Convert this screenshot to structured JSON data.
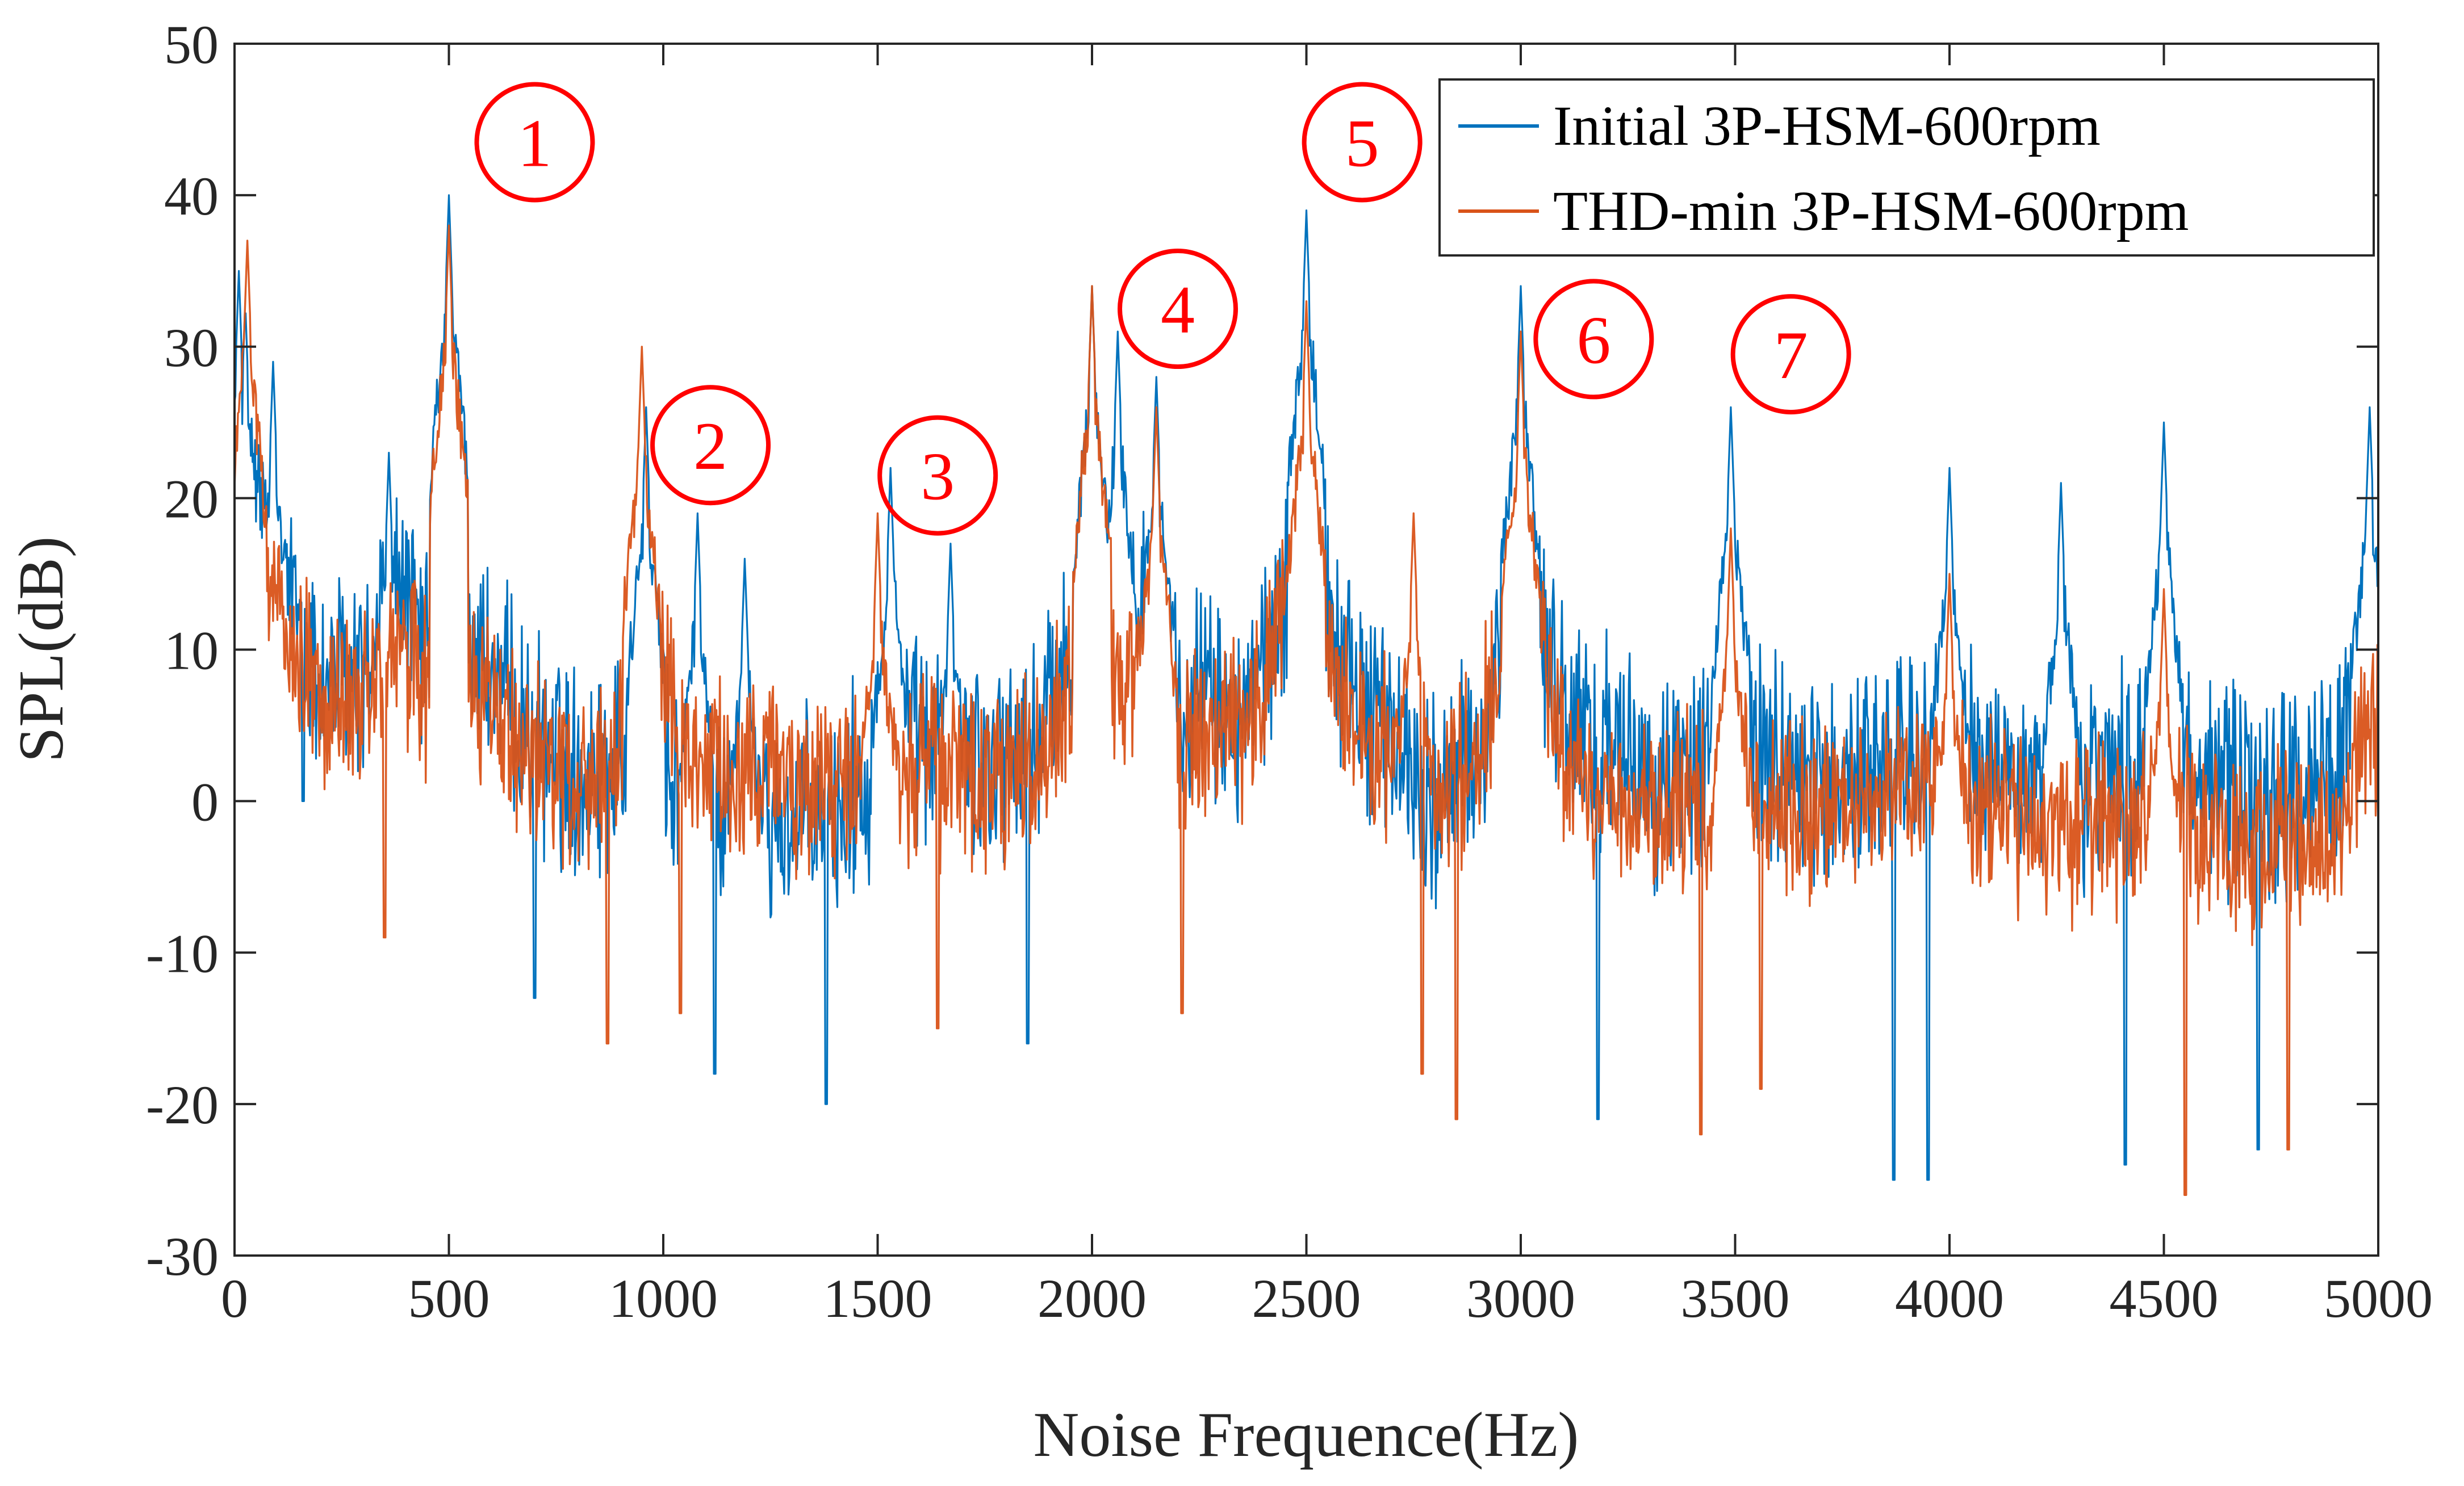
{
  "chart_data": {
    "type": "line",
    "title": "",
    "xlabel": "Noise Frequence(Hz)",
    "ylabel": "SPL(dB)",
    "xlim": [
      0,
      5000
    ],
    "ylim": [
      -30,
      50
    ],
    "xticks": [
      0,
      500,
      1000,
      1500,
      2000,
      2500,
      3000,
      3500,
      4000,
      4500,
      5000
    ],
    "yticks": [
      -30,
      -20,
      -10,
      0,
      10,
      20,
      30,
      40,
      50
    ],
    "xtick_labels": [
      "0",
      "500",
      "1000",
      "1500",
      "2000",
      "2500",
      "3000",
      "3500",
      "4000",
      "4500",
      "5000"
    ],
    "ytick_labels": [
      "-30",
      "-20",
      "-10",
      "0",
      "10",
      "20",
      "30",
      "40",
      "50"
    ],
    "grid": false,
    "legend_position": "top-right",
    "series": [
      {
        "name": "Initial 3P-HSM-600rpm",
        "color": "#0072BD",
        "baseline": [
          {
            "x": 0,
            "y": 22
          },
          {
            "x": 50,
            "y": 20
          },
          {
            "x": 100,
            "y": 14
          },
          {
            "x": 200,
            "y": 8
          },
          {
            "x": 300,
            "y": 8
          },
          {
            "x": 380,
            "y": 15
          },
          {
            "x": 450,
            "y": 9
          },
          {
            "x": 500,
            "y": 15
          },
          {
            "x": 600,
            "y": 8
          },
          {
            "x": 700,
            "y": 4
          },
          {
            "x": 800,
            "y": 2
          },
          {
            "x": 900,
            "y": 3
          },
          {
            "x": 1000,
            "y": 2
          },
          {
            "x": 1200,
            "y": -2
          },
          {
            "x": 1400,
            "y": -1
          },
          {
            "x": 1550,
            "y": 4
          },
          {
            "x": 1700,
            "y": 3
          },
          {
            "x": 1850,
            "y": 3
          },
          {
            "x": 2000,
            "y": 13
          },
          {
            "x": 2100,
            "y": 13
          },
          {
            "x": 2200,
            "y": 8
          },
          {
            "x": 2350,
            "y": 5
          },
          {
            "x": 2500,
            "y": 17
          },
          {
            "x": 2600,
            "y": 8
          },
          {
            "x": 2800,
            "y": 0
          },
          {
            "x": 2900,
            "y": 3
          },
          {
            "x": 3000,
            "y": 15
          },
          {
            "x": 3100,
            "y": 6
          },
          {
            "x": 3300,
            "y": 1
          },
          {
            "x": 3450,
            "y": 3
          },
          {
            "x": 3500,
            "y": 5
          },
          {
            "x": 3700,
            "y": 1
          },
          {
            "x": 4000,
            "y": 4
          },
          {
            "x": 4200,
            "y": 1
          },
          {
            "x": 4500,
            "y": 3
          },
          {
            "x": 4700,
            "y": 0
          },
          {
            "x": 4900,
            "y": 2
          },
          {
            "x": 5000,
            "y": 10
          }
        ],
        "peaks": [
          {
            "x": 10,
            "y": 35
          },
          {
            "x": 25,
            "y": 33
          },
          {
            "x": 90,
            "y": 29
          },
          {
            "x": 360,
            "y": 23
          },
          {
            "x": 500,
            "y": 40
          },
          {
            "x": 960,
            "y": 26
          },
          {
            "x": 1080,
            "y": 19
          },
          {
            "x": 1190,
            "y": 16
          },
          {
            "x": 1530,
            "y": 22
          },
          {
            "x": 1670,
            "y": 17
          },
          {
            "x": 2000,
            "y": 34
          },
          {
            "x": 2060,
            "y": 31
          },
          {
            "x": 2150,
            "y": 28
          },
          {
            "x": 2500,
            "y": 39
          },
          {
            "x": 3000,
            "y": 34
          },
          {
            "x": 3490,
            "y": 26
          },
          {
            "x": 4000,
            "y": 22
          },
          {
            "x": 4260,
            "y": 21
          },
          {
            "x": 4500,
            "y": 25
          },
          {
            "x": 4980,
            "y": 26
          }
        ],
        "dips": [
          {
            "x": 160,
            "y": 0
          },
          {
            "x": 700,
            "y": -13
          },
          {
            "x": 1120,
            "y": -18
          },
          {
            "x": 1380,
            "y": -20
          },
          {
            "x": 1850,
            "y": -16
          },
          {
            "x": 3180,
            "y": -21
          },
          {
            "x": 3870,
            "y": -25
          },
          {
            "x": 3950,
            "y": -25
          },
          {
            "x": 4410,
            "y": -24
          },
          {
            "x": 4720,
            "y": -23
          }
        ]
      },
      {
        "name": "THD-min 3P-HSM-600rpm",
        "color": "#D95319",
        "baseline": [
          {
            "x": 0,
            "y": 18
          },
          {
            "x": 50,
            "y": 17
          },
          {
            "x": 100,
            "y": 12
          },
          {
            "x": 200,
            "y": 6
          },
          {
            "x": 300,
            "y": 6
          },
          {
            "x": 380,
            "y": 11
          },
          {
            "x": 450,
            "y": 7
          },
          {
            "x": 500,
            "y": 13
          },
          {
            "x": 600,
            "y": 5
          },
          {
            "x": 700,
            "y": 3
          },
          {
            "x": 800,
            "y": 1
          },
          {
            "x": 900,
            "y": 3
          },
          {
            "x": 960,
            "y": 12
          },
          {
            "x": 1050,
            "y": 3
          },
          {
            "x": 1200,
            "y": 2
          },
          {
            "x": 1400,
            "y": 1
          },
          {
            "x": 1550,
            "y": 2
          },
          {
            "x": 1700,
            "y": 2
          },
          {
            "x": 1850,
            "y": 2
          },
          {
            "x": 2000,
            "y": 9
          },
          {
            "x": 2100,
            "y": 8
          },
          {
            "x": 2200,
            "y": 5
          },
          {
            "x": 2350,
            "y": 5
          },
          {
            "x": 2500,
            "y": 15
          },
          {
            "x": 2600,
            "y": 6
          },
          {
            "x": 2800,
            "y": 0
          },
          {
            "x": 2900,
            "y": 3
          },
          {
            "x": 3000,
            "y": 14
          },
          {
            "x": 3100,
            "y": 3
          },
          {
            "x": 3300,
            "y": -1
          },
          {
            "x": 3500,
            "y": 1
          },
          {
            "x": 3700,
            "y": -1
          },
          {
            "x": 4000,
            "y": 1
          },
          {
            "x": 4200,
            "y": -2
          },
          {
            "x": 4500,
            "y": -1
          },
          {
            "x": 4700,
            "y": -3
          },
          {
            "x": 4900,
            "y": -2
          },
          {
            "x": 5000,
            "y": 6
          }
        ],
        "peaks": [
          {
            "x": 30,
            "y": 37
          },
          {
            "x": 500,
            "y": 38
          },
          {
            "x": 950,
            "y": 30
          },
          {
            "x": 1500,
            "y": 19
          },
          {
            "x": 2000,
            "y": 34
          },
          {
            "x": 2150,
            "y": 26
          },
          {
            "x": 2500,
            "y": 33
          },
          {
            "x": 2750,
            "y": 19
          },
          {
            "x": 3000,
            "y": 31
          },
          {
            "x": 3490,
            "y": 18
          },
          {
            "x": 4000,
            "y": 15
          },
          {
            "x": 4500,
            "y": 14
          }
        ],
        "dips": [
          {
            "x": 350,
            "y": -9
          },
          {
            "x": 870,
            "y": -16
          },
          {
            "x": 1040,
            "y": -14
          },
          {
            "x": 1640,
            "y": -15
          },
          {
            "x": 2210,
            "y": -14
          },
          {
            "x": 2770,
            "y": -18
          },
          {
            "x": 2850,
            "y": -21
          },
          {
            "x": 3420,
            "y": -22
          },
          {
            "x": 3560,
            "y": -19
          },
          {
            "x": 4550,
            "y": -26
          },
          {
            "x": 4790,
            "y": -23
          }
        ]
      }
    ],
    "annotations": [
      {
        "label": "1",
        "x": 700,
        "y": 43.5
      },
      {
        "label": "2",
        "x": 1110,
        "y": 23.5
      },
      {
        "label": "3",
        "x": 1640,
        "y": 21.5
      },
      {
        "label": "4",
        "x": 2200,
        "y": 32.5
      },
      {
        "label": "5",
        "x": 2630,
        "y": 43.5
      },
      {
        "label": "6",
        "x": 3170,
        "y": 30.5
      },
      {
        "label": "7",
        "x": 3630,
        "y": 29.5
      }
    ]
  }
}
